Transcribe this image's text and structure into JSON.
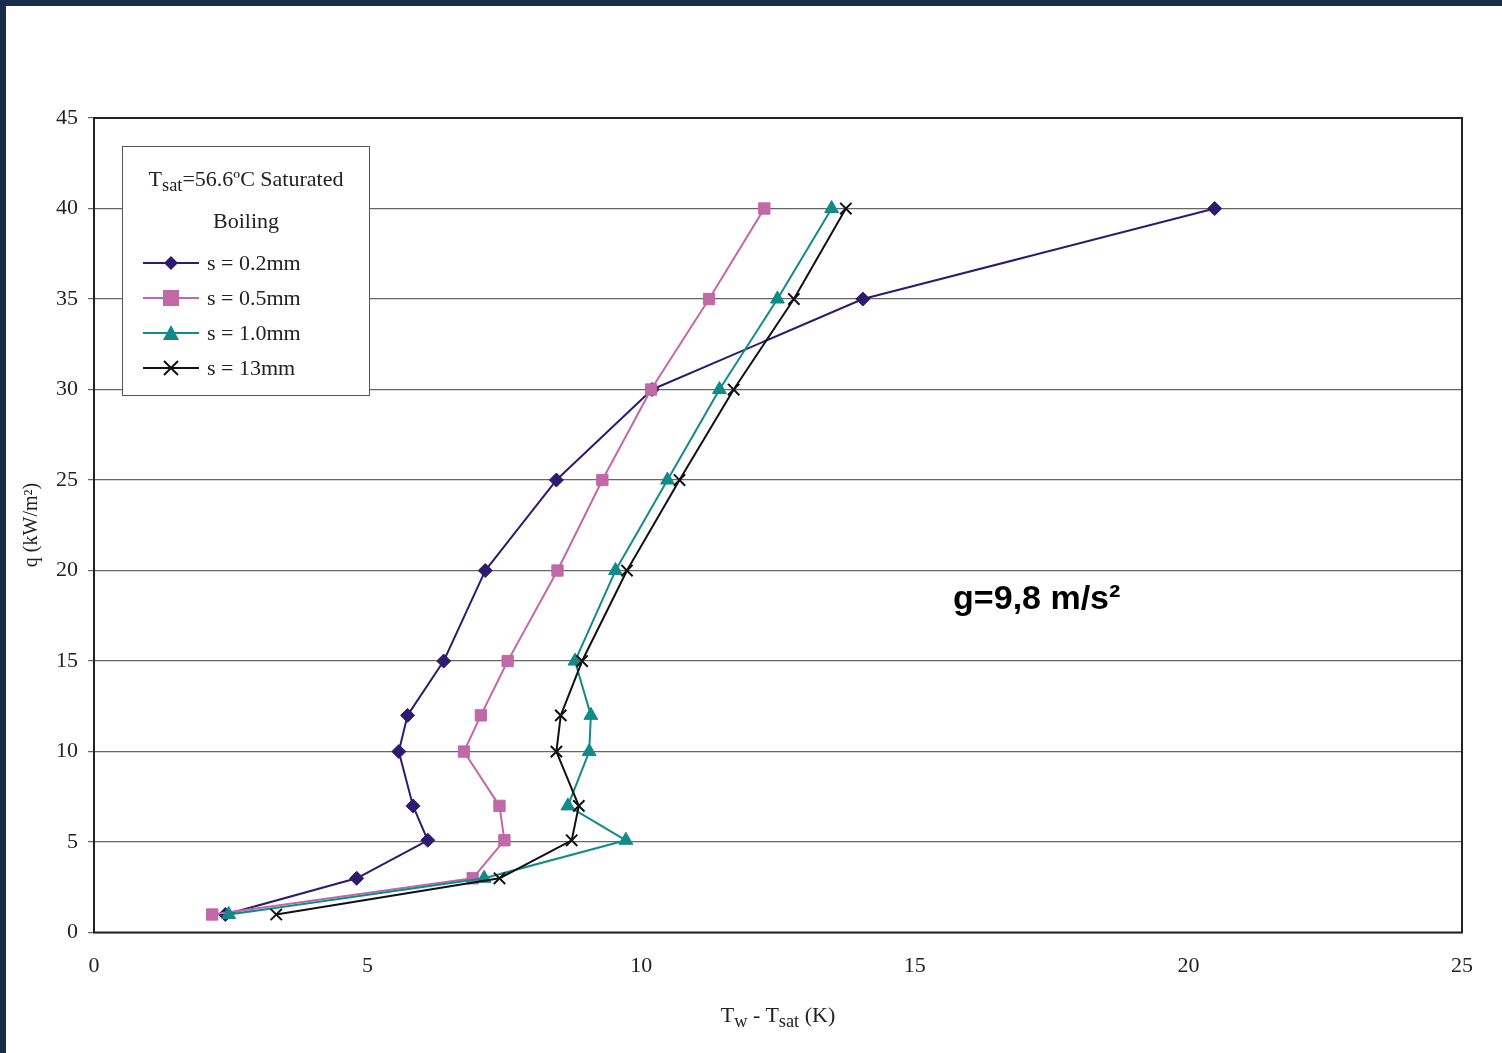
{
  "chart_data": {
    "type": "line",
    "xlabel": "T$_{w}$ - T$_{sat}$ (K)",
    "ylabel": "q (kW/m²)",
    "legend_title": "T$_{sat}$=56.6ºC Saturated Boiling",
    "legend": "top left",
    "grid": "y",
    "line_style": "solid",
    "xlim": [
      0,
      25
    ],
    "xticks": [
      0,
      5,
      10,
      15,
      20,
      25
    ],
    "ylim": [
      0,
      45
    ],
    "yticks": [
      0,
      5,
      10,
      15,
      20,
      25,
      30,
      35,
      40,
      45
    ],
    "series": [
      {
        "name": "s = 0.2mm",
        "color": "#2e1a6e",
        "marker": "diamond",
        "x": [
          2.4,
          4.8,
          6.1,
          5.83,
          5.57,
          5.73,
          6.39,
          7.15,
          8.45,
          10.2,
          14.05,
          20.48
        ],
        "values": [
          1,
          3,
          5.1,
          7,
          10,
          12,
          15,
          20,
          25,
          30,
          35,
          40
        ]
      },
      {
        "name": "s = 0.5mm",
        "color": "#c068a8",
        "marker": "square",
        "x": [
          2.16,
          6.92,
          7.5,
          7.41,
          6.76,
          7.07,
          7.56,
          8.47,
          9.29,
          10.18,
          11.24,
          12.25
        ],
        "values": [
          1,
          3,
          5.1,
          7,
          10,
          12,
          15,
          20,
          25,
          30,
          35,
          40
        ]
      },
      {
        "name": "s = 1.0mm",
        "color": "#138a8a",
        "marker": "triangle",
        "x": [
          2.46,
          7.13,
          9.72,
          8.66,
          9.05,
          9.08,
          8.79,
          9.53,
          10.48,
          11.43,
          12.49,
          13.48
        ],
        "values": [
          1,
          3,
          5.1,
          7,
          10,
          12,
          15,
          20,
          25,
          30,
          35,
          40
        ]
      },
      {
        "name": "s = 13mm",
        "color": "#111111",
        "marker": "cross",
        "x": [
          3.33,
          7.41,
          8.73,
          8.86,
          8.45,
          8.53,
          8.92,
          9.74,
          10.7,
          11.69,
          12.79,
          13.74
        ],
        "values": [
          1,
          3,
          5.1,
          7,
          10,
          12,
          15,
          20,
          25,
          30,
          35,
          40
        ]
      }
    ],
    "annotations": [
      "g=9,8 m/s²"
    ]
  }
}
